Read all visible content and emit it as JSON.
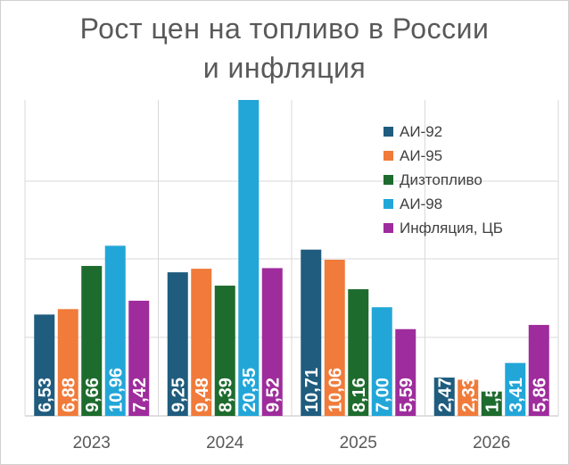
{
  "chart_data": {
    "type": "bar",
    "title_lines": [
      "Рост цен на топливо в России",
      "и инфляция"
    ],
    "categories": [
      "2023",
      "2024",
      "2025",
      "2026"
    ],
    "series": [
      {
        "name": "АИ-92",
        "color": "#1f5c7e",
        "values": [
          6.53,
          9.25,
          10.71,
          2.47
        ],
        "labels": [
          "6,53",
          "9,25",
          "10,71",
          "2,47"
        ]
      },
      {
        "name": "АИ-95",
        "color": "#f07b3a",
        "values": [
          6.88,
          9.48,
          10.06,
          2.33
        ],
        "labels": [
          "6,88",
          "9,48",
          "10,06",
          "2,33"
        ]
      },
      {
        "name": "Дизтопливо",
        "color": "#1e6b2e",
        "values": [
          9.66,
          8.39,
          8.16,
          1.57
        ],
        "labels": [
          "9,66",
          "8,39",
          "8,16",
          "1,57"
        ]
      },
      {
        "name": "АИ-98",
        "color": "#22a6d8",
        "values": [
          10.96,
          20.35,
          7.0,
          3.41
        ],
        "labels": [
          "10,96",
          "20,35",
          "7,00",
          "3,41"
        ]
      },
      {
        "name": "Инфляция, ЦБ",
        "color": "#9e2c9c",
        "values": [
          7.42,
          9.52,
          5.59,
          5.86
        ],
        "labels": [
          "7,42",
          "9,52",
          "5,59",
          "5,86"
        ]
      }
    ],
    "ylim": [
      0,
      20.35
    ],
    "grid": true,
    "legend_position": "top-right"
  }
}
